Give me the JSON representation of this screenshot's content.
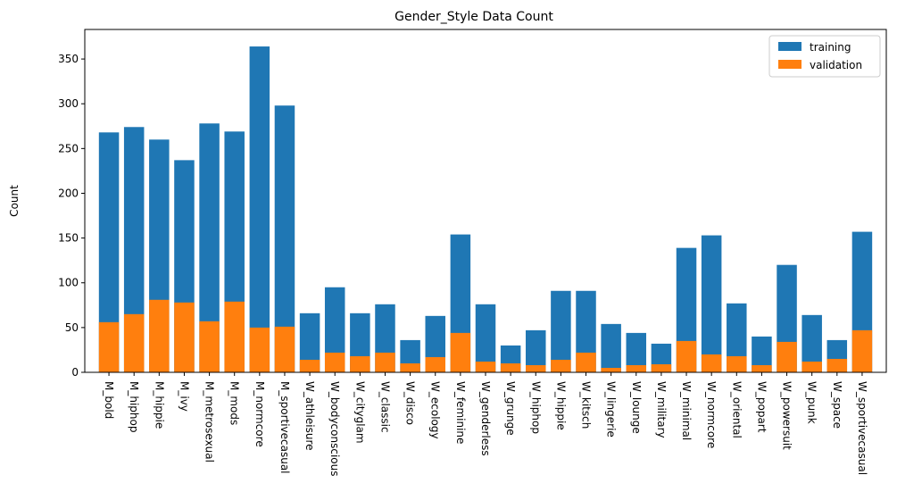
{
  "chart_data": {
    "type": "bar",
    "title": "Gender_Style Data Count",
    "xlabel": "",
    "ylabel": "Count",
    "ylim": [
      0,
      383
    ],
    "yticks": [
      0,
      50,
      100,
      150,
      200,
      250,
      300,
      350
    ],
    "grid": false,
    "legend_position": "top-right",
    "categories": [
      "M_bold",
      "M_hiphop",
      "M_hippie",
      "M_ivy",
      "M_metrosexual",
      "M_mods",
      "M_normcore",
      "M_sportivecasual",
      "W_athleisure",
      "W_bodyconscious",
      "W_cityglam",
      "W_classic",
      "W_disco",
      "W_ecology",
      "W_feminine",
      "W_genderless",
      "W_grunge",
      "W_hiphop",
      "W_hippie",
      "W_kitsch",
      "W_lingerie",
      "W_lounge",
      "W_military",
      "W_minimal",
      "W_normcore",
      "W_oriental",
      "W_popart",
      "W_powersuit",
      "W_punk",
      "W_space",
      "W_sportivecasual"
    ],
    "series": [
      {
        "name": "training",
        "color": "#1f77b4",
        "values": [
          268,
          274,
          260,
          237,
          278,
          269,
          364,
          298,
          66,
          95,
          66,
          76,
          36,
          63,
          154,
          76,
          30,
          47,
          91,
          91,
          54,
          44,
          32,
          139,
          153,
          77,
          40,
          120,
          64,
          36,
          157
        ]
      },
      {
        "name": "validation",
        "color": "#ff7f0e",
        "values": [
          56,
          65,
          81,
          78,
          57,
          79,
          50,
          51,
          14,
          22,
          18,
          22,
          10,
          17,
          44,
          12,
          10,
          8,
          14,
          22,
          5,
          8,
          9,
          35,
          20,
          18,
          8,
          34,
          12,
          15,
          47
        ]
      }
    ]
  }
}
